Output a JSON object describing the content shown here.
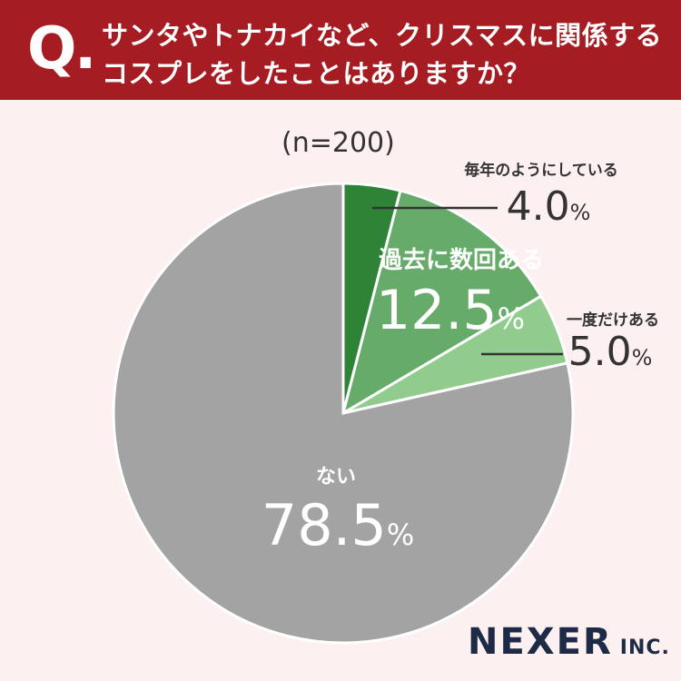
{
  "header": {
    "q_mark": "Q",
    "q_dot": ".",
    "question_line1": "サンタやトナカイなど、クリスマスに関係する",
    "question_line2": "コスプレをしたことはありますか？",
    "bg_color": "#a51d23"
  },
  "sample_size": "(n=200)",
  "brand": {
    "name": "NEXER",
    "suffix": "INC."
  },
  "chart_data": {
    "type": "pie",
    "title": "サンタやトナカイなど、クリスマスに関係するコスプレをしたことはありますか？",
    "n": 200,
    "slices": [
      {
        "label": "毎年のようにしている",
        "value": 4.0,
        "display": "4.0",
        "unit": "%",
        "color": "#2f8336"
      },
      {
        "label": "過去に数回ある",
        "value": 12.5,
        "display": "12.5",
        "unit": "%",
        "color": "#67ab6b"
      },
      {
        "label": "一度だけある",
        "value": 5.0,
        "display": "5.0",
        "unit": "%",
        "color": "#92cb8e"
      },
      {
        "label": "ない",
        "value": 78.5,
        "display": "78.5",
        "unit": "%",
        "color": "#a3a3a3"
      }
    ]
  }
}
